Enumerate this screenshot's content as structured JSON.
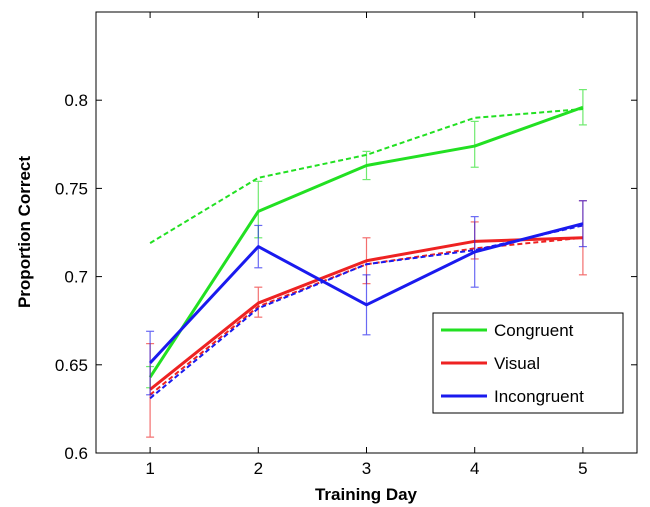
{
  "chart_data": {
    "type": "line",
    "xlabel": "Training Day",
    "ylabel": "Proportion Correct",
    "xlim": [
      0.5,
      5.5
    ],
    "ylim": [
      0.6,
      0.85
    ],
    "x_ticks": [
      1,
      2,
      3,
      4,
      5
    ],
    "x_tick_labels": [
      "1",
      "2",
      "3",
      "4",
      "5"
    ],
    "y_ticks": [
      0.6,
      0.65,
      0.7,
      0.75,
      0.8
    ],
    "y_tick_labels": [
      "0.6",
      "0.65",
      "0.7",
      "0.75",
      "0.8"
    ],
    "grid": false,
    "legend_position": "lower-right",
    "x": [
      1,
      2,
      3,
      4,
      5
    ],
    "series": [
      {
        "name": "Congruent",
        "color": "#22e022",
        "values": [
          0.643,
          0.737,
          0.763,
          0.774,
          0.796
        ],
        "error_low": [
          0.637,
          0.722,
          0.755,
          0.762,
          0.786
        ],
        "error_high": [
          0.649,
          0.754,
          0.771,
          0.788,
          0.806
        ],
        "dashed_values": [
          0.719,
          0.756,
          0.769,
          0.79,
          0.795
        ]
      },
      {
        "name": "Visual",
        "color": "#ee2222",
        "values": [
          0.636,
          0.685,
          0.709,
          0.72,
          0.722
        ],
        "error_low": [
          0.609,
          0.677,
          0.696,
          0.71,
          0.701
        ],
        "error_high": [
          0.662,
          0.694,
          0.722,
          0.731,
          0.743
        ],
        "dashed_values": [
          0.633,
          0.683,
          0.707,
          0.716,
          0.722
        ]
      },
      {
        "name": "Incongruent",
        "color": "#1a1aee",
        "values": [
          0.651,
          0.717,
          0.684,
          0.714,
          0.73
        ],
        "error_low": [
          0.633,
          0.705,
          0.667,
          0.694,
          0.717
        ],
        "error_high": [
          0.669,
          0.729,
          0.701,
          0.734,
          0.743
        ],
        "dashed_values": [
          0.631,
          0.682,
          0.707,
          0.715,
          0.729
        ]
      }
    ]
  }
}
